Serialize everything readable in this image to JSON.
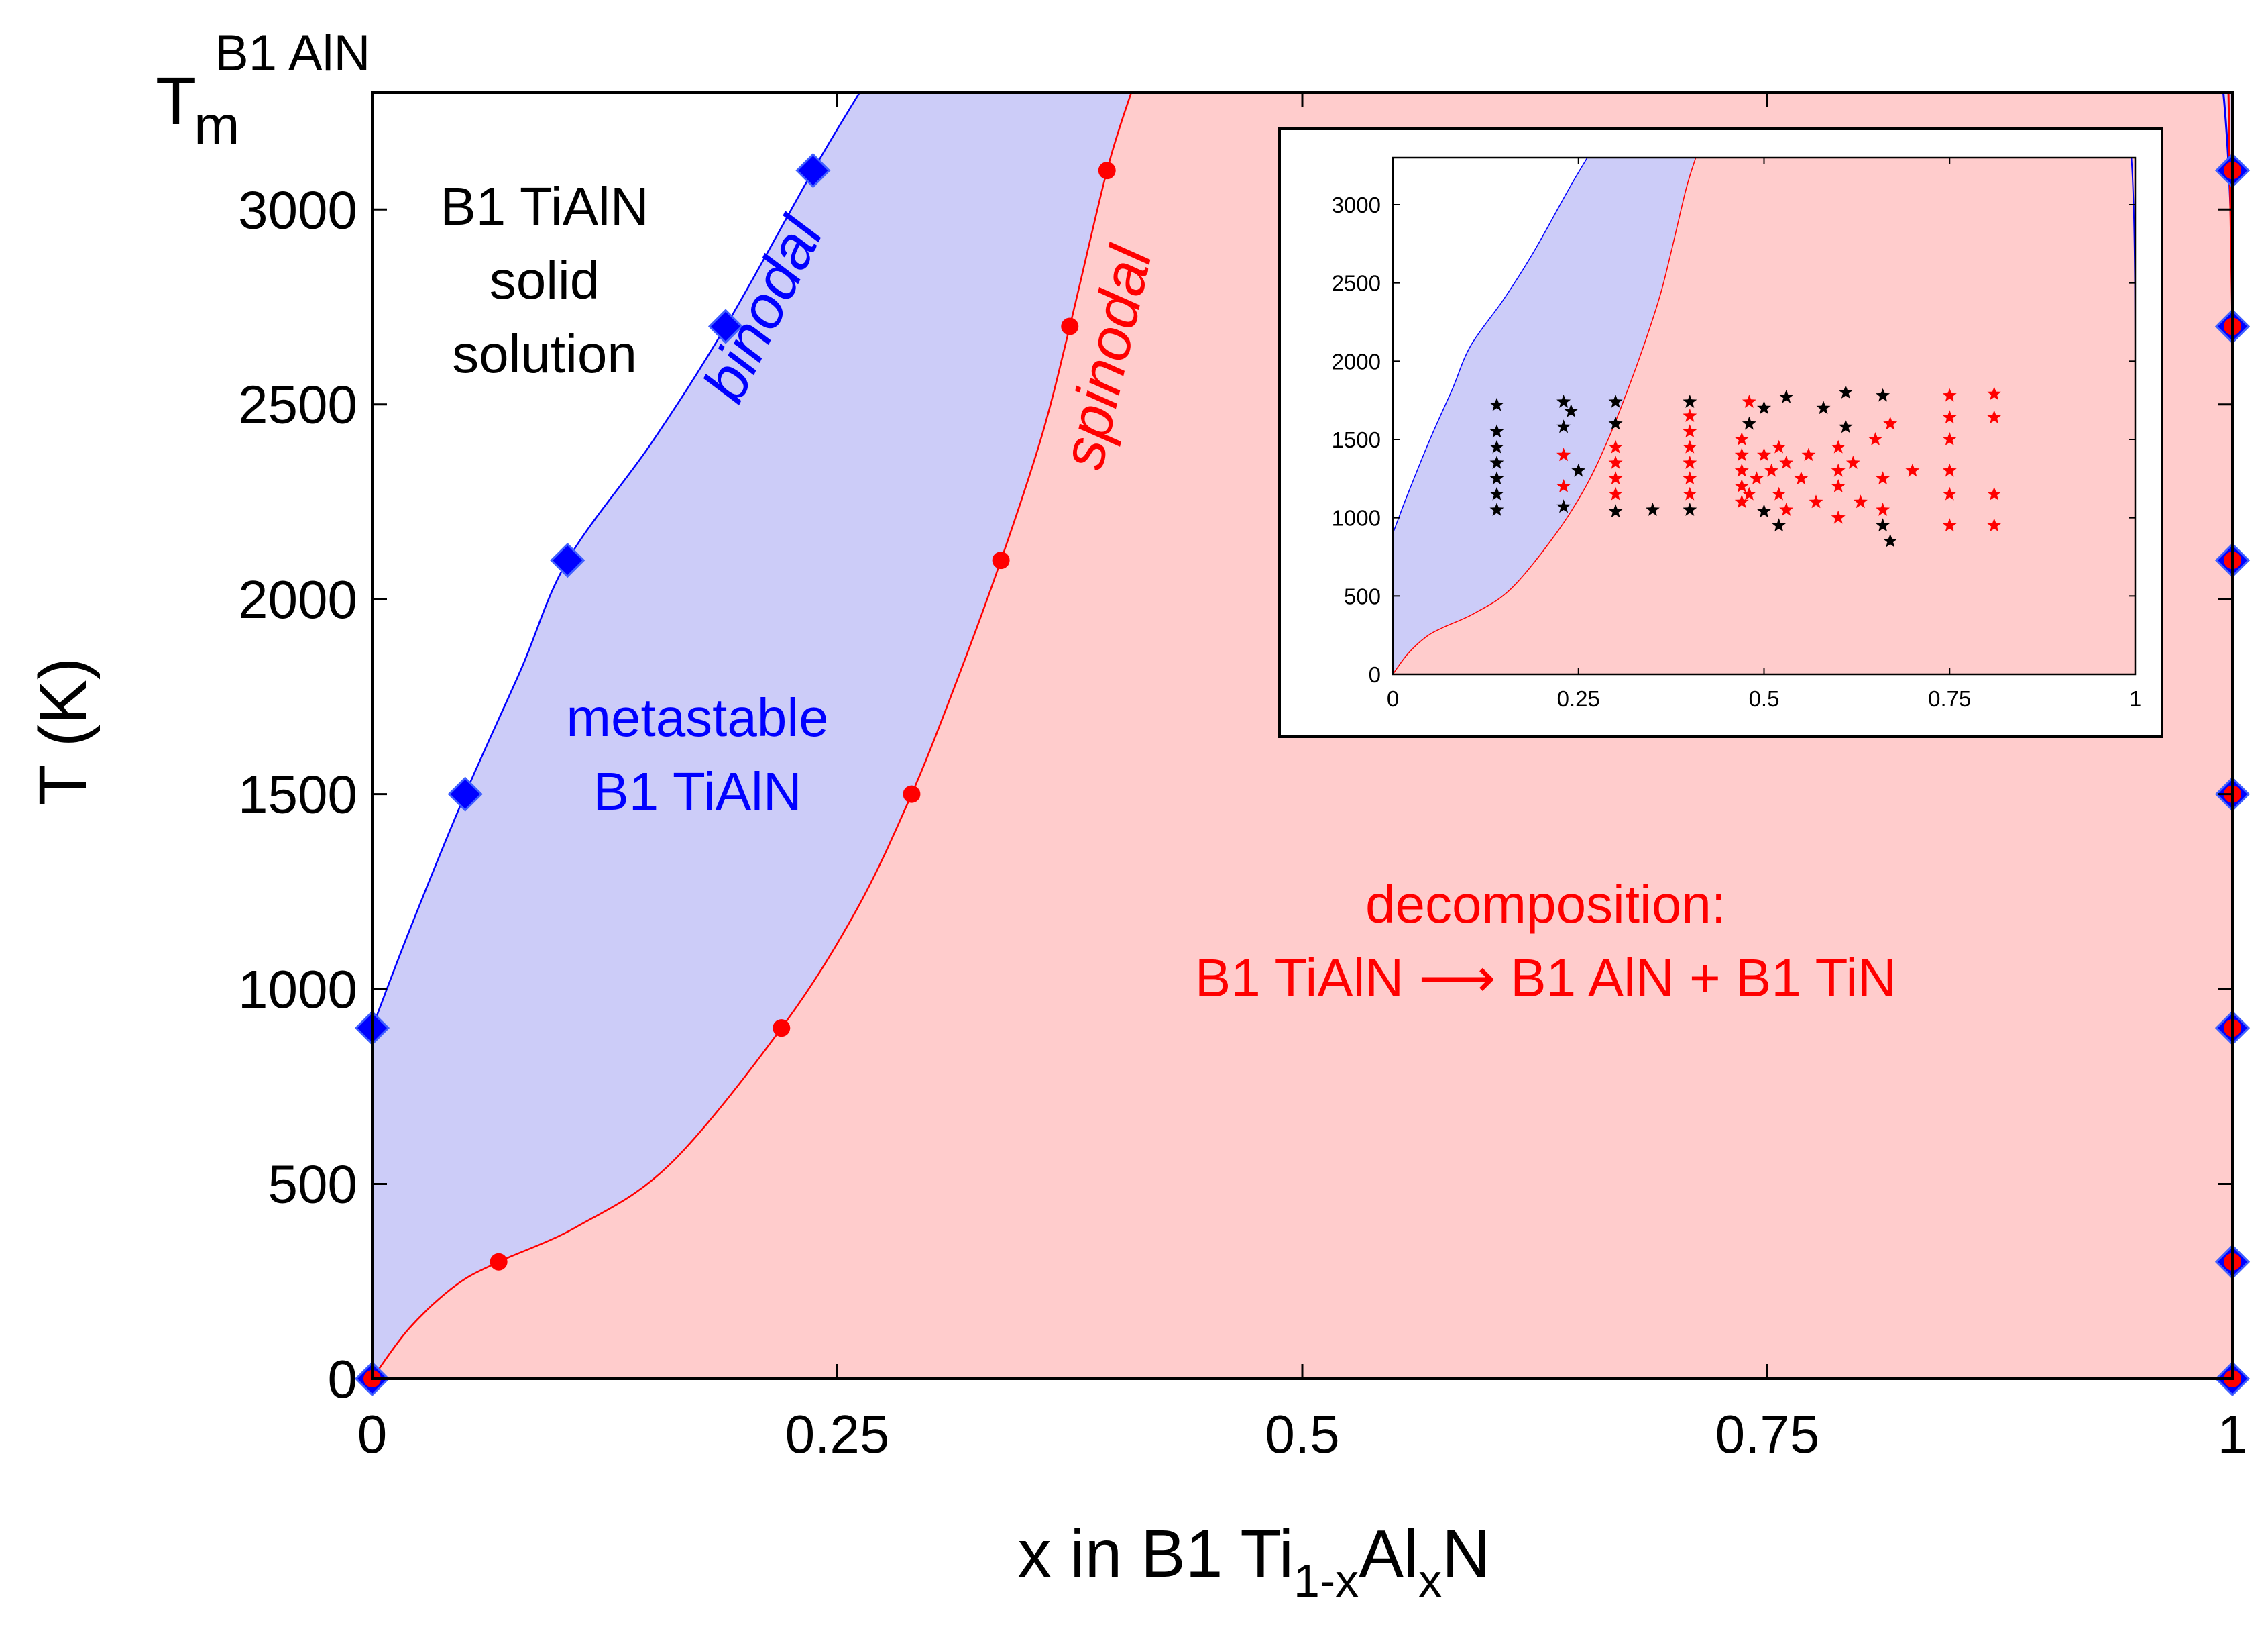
{
  "chart_data": {
    "type": "area",
    "xlabel_parts": [
      "x in B1 Ti",
      "1-x",
      "Al",
      "x",
      "N"
    ],
    "ylabel": "T (K)",
    "top_label_parts": [
      "T",
      "m",
      "B1 AlN"
    ],
    "xlim": [
      0,
      1
    ],
    "ylim": [
      0,
      3300
    ],
    "xticks": [
      {
        "v": 0,
        "label": "0"
      },
      {
        "v": 0.25,
        "label": "0.25"
      },
      {
        "v": 0.5,
        "label": "0.5"
      },
      {
        "v": 0.75,
        "label": "0.75"
      },
      {
        "v": 1,
        "label": "1"
      }
    ],
    "yticks": [
      {
        "v": 0,
        "label": "0"
      },
      {
        "v": 500,
        "label": "500"
      },
      {
        "v": 1000,
        "label": "1000"
      },
      {
        "v": 1500,
        "label": "1500"
      },
      {
        "v": 2000,
        "label": "2000"
      },
      {
        "v": 2500,
        "label": "2500"
      },
      {
        "v": 3000,
        "label": "3000"
      }
    ],
    "annotations": {
      "solid_solution": [
        "B1 TiAlN",
        "solid",
        "solution"
      ],
      "binodal": "binodal",
      "spinodal": "spinodal",
      "metastable": [
        "metastable",
        "B1 TiAlN"
      ],
      "decomposition": [
        "decomposition:",
        "B1 TiAlN ⟶ B1 AlN + B1 TiN"
      ]
    },
    "colors": {
      "binodal": "#0000ff",
      "spinodal": "#ff0000",
      "metastable_fill": "#ccccf8",
      "decomposition_fill": "#ffcccc",
      "marker_black": "#000000"
    },
    "binodal": {
      "x": [
        0,
        0,
        0.05,
        0.105,
        0.19,
        0.237
      ],
      "T": [
        0,
        900,
        1500,
        2100,
        2700,
        3100
      ],
      "curve_x": [
        0,
        0.02,
        0.05,
        0.08,
        0.105,
        0.15,
        0.19,
        0.237,
        0.262
      ],
      "curve_T": [
        900,
        1150,
        1500,
        1820,
        2100,
        2400,
        2700,
        3100,
        3300
      ]
    },
    "binodal_right": {
      "x": [
        1,
        1,
        1,
        1,
        1,
        1,
        1
      ],
      "T": [
        0,
        300,
        900,
        1500,
        2100,
        2700,
        3100
      ]
    },
    "spinodal": {
      "x": [
        0,
        0.068,
        0.22,
        0.29,
        0.338,
        0.375,
        0.395
      ],
      "T": [
        0,
        300,
        900,
        1500,
        2100,
        2700,
        3100
      ],
      "curve_x": [
        0,
        0.02,
        0.045,
        0.068,
        0.11,
        0.16,
        0.22,
        0.26,
        0.29,
        0.315,
        0.338,
        0.36,
        0.375,
        0.395,
        0.408
      ],
      "curve_T": [
        0,
        130,
        240,
        300,
        390,
        550,
        900,
        1200,
        1500,
        1800,
        2100,
        2420,
        2700,
        3100,
        3300
      ]
    },
    "spinodal_right": {
      "x": [
        1,
        1,
        1,
        1,
        1,
        1,
        1
      ],
      "T": [
        0,
        300,
        900,
        1500,
        2100,
        2700,
        3100
      ]
    },
    "inset": {
      "xlim": [
        0,
        1
      ],
      "ylim": [
        0,
        3300
      ],
      "xticks": [
        {
          "v": 0,
          "label": "0"
        },
        {
          "v": 0.25,
          "label": "0.25"
        },
        {
          "v": 0.5,
          "label": "0.5"
        },
        {
          "v": 0.75,
          "label": "0.75"
        },
        {
          "v": 1,
          "label": "1"
        }
      ],
      "yticks": [
        {
          "v": 0,
          "label": "0"
        },
        {
          "v": 500,
          "label": "500"
        },
        {
          "v": 1000,
          "label": "1000"
        },
        {
          "v": 1500,
          "label": "1500"
        },
        {
          "v": 2000,
          "label": "2000"
        },
        {
          "v": 2500,
          "label": "2500"
        },
        {
          "v": 3000,
          "label": "3000"
        }
      ],
      "stars_black": [
        [
          0.14,
          1050
        ],
        [
          0.14,
          1150
        ],
        [
          0.14,
          1250
        ],
        [
          0.14,
          1350
        ],
        [
          0.14,
          1450
        ],
        [
          0.14,
          1550
        ],
        [
          0.14,
          1720
        ],
        [
          0.23,
          1070
        ],
        [
          0.23,
          1580
        ],
        [
          0.23,
          1740
        ],
        [
          0.24,
          1680
        ],
        [
          0.25,
          1300
        ],
        [
          0.3,
          1040
        ],
        [
          0.3,
          1600
        ],
        [
          0.3,
          1740
        ],
        [
          0.35,
          1050
        ],
        [
          0.4,
          1050
        ],
        [
          0.4,
          1740
        ],
        [
          0.48,
          1600
        ],
        [
          0.5,
          1040
        ],
        [
          0.5,
          1700
        ],
        [
          0.52,
          950
        ],
        [
          0.53,
          1770
        ],
        [
          0.58,
          1700
        ],
        [
          0.61,
          1580
        ],
        [
          0.61,
          1800
        ],
        [
          0.66,
          950
        ],
        [
          0.66,
          1780
        ],
        [
          0.67,
          850
        ]
      ],
      "stars_red": [
        [
          0.23,
          1200
        ],
        [
          0.23,
          1400
        ],
        [
          0.3,
          1150
        ],
        [
          0.3,
          1250
        ],
        [
          0.3,
          1350
        ],
        [
          0.3,
          1450
        ],
        [
          0.4,
          1150
        ],
        [
          0.4,
          1250
        ],
        [
          0.4,
          1350
        ],
        [
          0.4,
          1450
        ],
        [
          0.4,
          1550
        ],
        [
          0.4,
          1650
        ],
        [
          0.47,
          1100
        ],
        [
          0.47,
          1200
        ],
        [
          0.47,
          1300
        ],
        [
          0.47,
          1400
        ],
        [
          0.47,
          1500
        ],
        [
          0.48,
          1740
        ],
        [
          0.48,
          1150
        ],
        [
          0.49,
          1250
        ],
        [
          0.5,
          1400
        ],
        [
          0.51,
          1300
        ],
        [
          0.52,
          1150
        ],
        [
          0.52,
          1450
        ],
        [
          0.53,
          1350
        ],
        [
          0.53,
          1050
        ],
        [
          0.55,
          1250
        ],
        [
          0.56,
          1400
        ],
        [
          0.57,
          1100
        ],
        [
          0.6,
          1000
        ],
        [
          0.6,
          1200
        ],
        [
          0.6,
          1300
        ],
        [
          0.6,
          1450
        ],
        [
          0.62,
          1350
        ],
        [
          0.63,
          1100
        ],
        [
          0.65,
          1500
        ],
        [
          0.66,
          1050
        ],
        [
          0.66,
          1250
        ],
        [
          0.67,
          1600
        ],
        [
          0.7,
          1300
        ],
        [
          0.75,
          950
        ],
        [
          0.75,
          1150
        ],
        [
          0.75,
          1300
        ],
        [
          0.75,
          1500
        ],
        [
          0.75,
          1640
        ],
        [
          0.75,
          1780
        ],
        [
          0.81,
          950
        ],
        [
          0.81,
          1150
        ],
        [
          0.81,
          1640
        ],
        [
          0.81,
          1790
        ]
      ]
    }
  }
}
